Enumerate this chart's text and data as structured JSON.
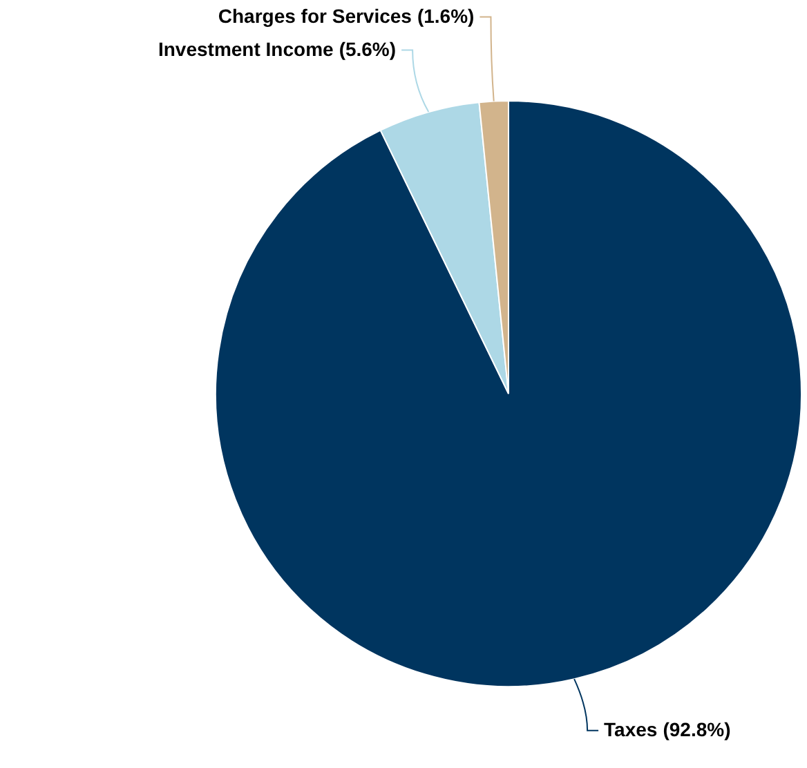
{
  "chart_data": {
    "type": "pie",
    "categories": [
      "Taxes",
      "Investment Income",
      "Charges for Services"
    ],
    "values": [
      92.8,
      5.6,
      1.6
    ],
    "value_labels": [
      "(92.8%)",
      "(5.6%)",
      "(1.6%)"
    ],
    "colors": [
      "#00355f",
      "#add8e6",
      "#d2b48c"
    ]
  }
}
